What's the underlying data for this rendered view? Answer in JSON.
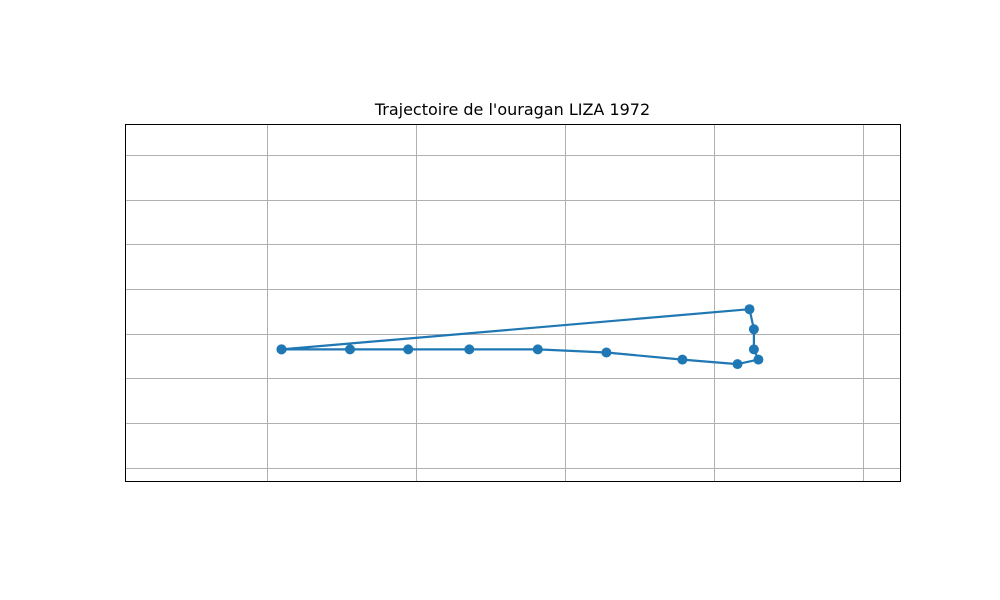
{
  "chart_data": {
    "type": "line",
    "title": "Trajectoire de l'ouragan LIZA 1972",
    "xlabel": "",
    "ylabel": "",
    "grid": true,
    "legend": "none",
    "series": [
      {
        "marker": "circle",
        "x": [
          1.05,
          1.51,
          1.9,
          2.31,
          2.77,
          3.23,
          3.74,
          4.11,
          4.25,
          4.22,
          4.22,
          4.19,
          1.05
        ],
        "y": [
          -0.35,
          -0.35,
          -0.35,
          -0.35,
          -0.35,
          -0.42,
          -0.58,
          -0.68,
          -0.58,
          -0.35,
          0.1,
          0.55,
          -0.35
        ]
      }
    ],
    "xlim": [
      0.0,
      5.2
    ],
    "ylim": [
      -3.3,
      4.7
    ],
    "xticks": [
      0.95,
      1.95,
      2.95,
      3.95,
      4.95
    ],
    "yticks": [
      -3.0,
      -2.0,
      -1.0,
      0.0,
      1.0,
      2.0,
      3.0,
      4.0
    ],
    "tick_labels_visible": false,
    "colors": {
      "line": "#1f77b4",
      "grid": "#b0b0b0",
      "frame": "#000000"
    }
  }
}
